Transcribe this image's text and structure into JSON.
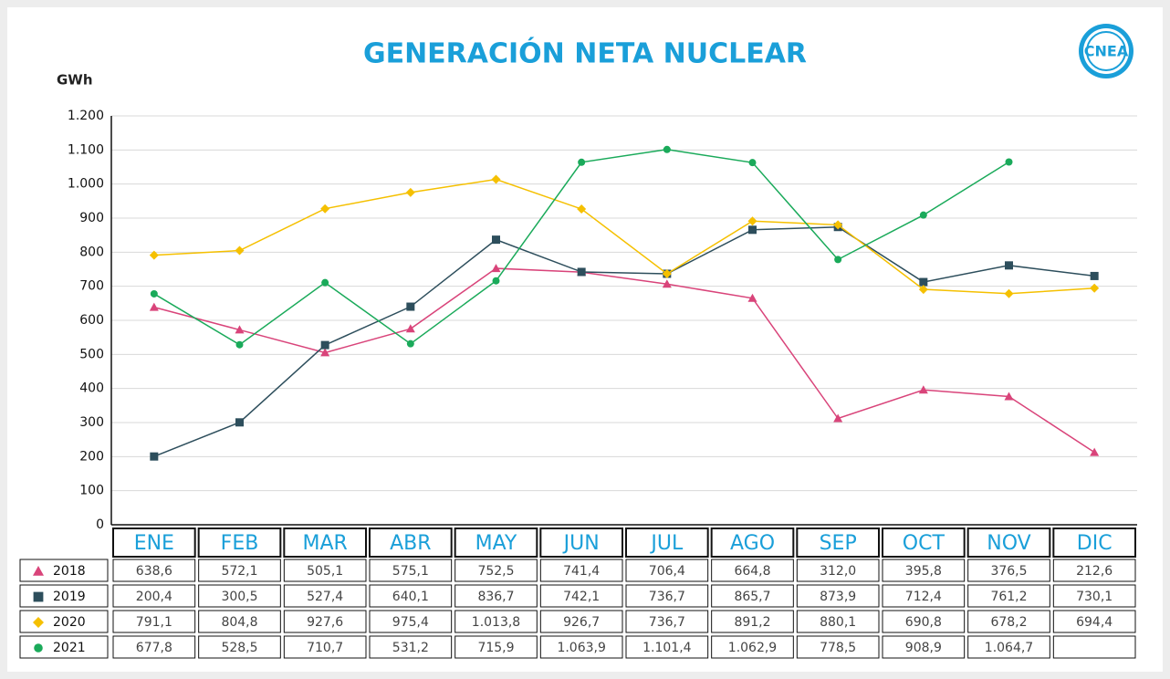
{
  "chart_data": {
    "type": "line",
    "title": "GENERACIÓN NETA NUCLEAR",
    "ylabel": "GWh",
    "logo": "CNEA",
    "categories": [
      "ENE",
      "FEB",
      "MAR",
      "ABR",
      "MAY",
      "JUN",
      "JUL",
      "AGO",
      "SEP",
      "OCT",
      "NOV",
      "DIC"
    ],
    "ylim": [
      0,
      1200
    ],
    "yticks": [
      0,
      100,
      200,
      300,
      400,
      500,
      600,
      700,
      800,
      900,
      {
        "value": 1000,
        "label": "1.000"
      },
      {
        "value": 1100,
        "label": "1.100"
      },
      {
        "value": 1200,
        "label": "1.200"
      }
    ],
    "grid": true,
    "series": [
      {
        "name": "2018",
        "color": "#d9447a",
        "marker": "triangle",
        "values": [
          638.6,
          572.1,
          505.1,
          575.1,
          752.5,
          741.4,
          706.4,
          664.8,
          312.0,
          395.8,
          376.5,
          212.6
        ],
        "value_labels": [
          "638,6",
          "572,1",
          "505,1",
          "575,1",
          "752,5",
          "741,4",
          "706,4",
          "664,8",
          "312,0",
          "395,8",
          "376,5",
          "212,6"
        ]
      },
      {
        "name": "2019",
        "color": "#2d4e5c",
        "marker": "square",
        "values": [
          200.4,
          300.5,
          527.4,
          640.1,
          836.7,
          742.1,
          736.7,
          865.7,
          873.9,
          712.4,
          761.2,
          730.1
        ],
        "value_labels": [
          "200,4",
          "300,5",
          "527,4",
          "640,1",
          "836,7",
          "742,1",
          "736,7",
          "865,7",
          "873,9",
          "712,4",
          "761,2",
          "730,1"
        ]
      },
      {
        "name": "2020",
        "color": "#f5c000",
        "marker": "diamond",
        "values": [
          791.1,
          804.8,
          927.6,
          975.4,
          1013.8,
          926.7,
          736.7,
          891.2,
          880.1,
          690.8,
          678.2,
          694.4
        ],
        "value_labels": [
          "791,1",
          "804,8",
          "927,6",
          "975,4",
          "1.013,8",
          "926,7",
          "736,7",
          "891,2",
          "880,1",
          "690,8",
          "678,2",
          "694,4"
        ]
      },
      {
        "name": "2021",
        "color": "#1aaa5a",
        "marker": "circle",
        "values": [
          677.8,
          528.5,
          710.7,
          531.2,
          715.9,
          1063.9,
          1101.4,
          1062.9,
          778.5,
          908.9,
          1064.7,
          null
        ],
        "value_labels": [
          "677,8",
          "528,5",
          "710,7",
          "531,2",
          "715,9",
          "1.063,9",
          "1.101,4",
          "1.062,9",
          "778,5",
          "908,9",
          "1.064,7",
          null
        ]
      }
    ]
  }
}
